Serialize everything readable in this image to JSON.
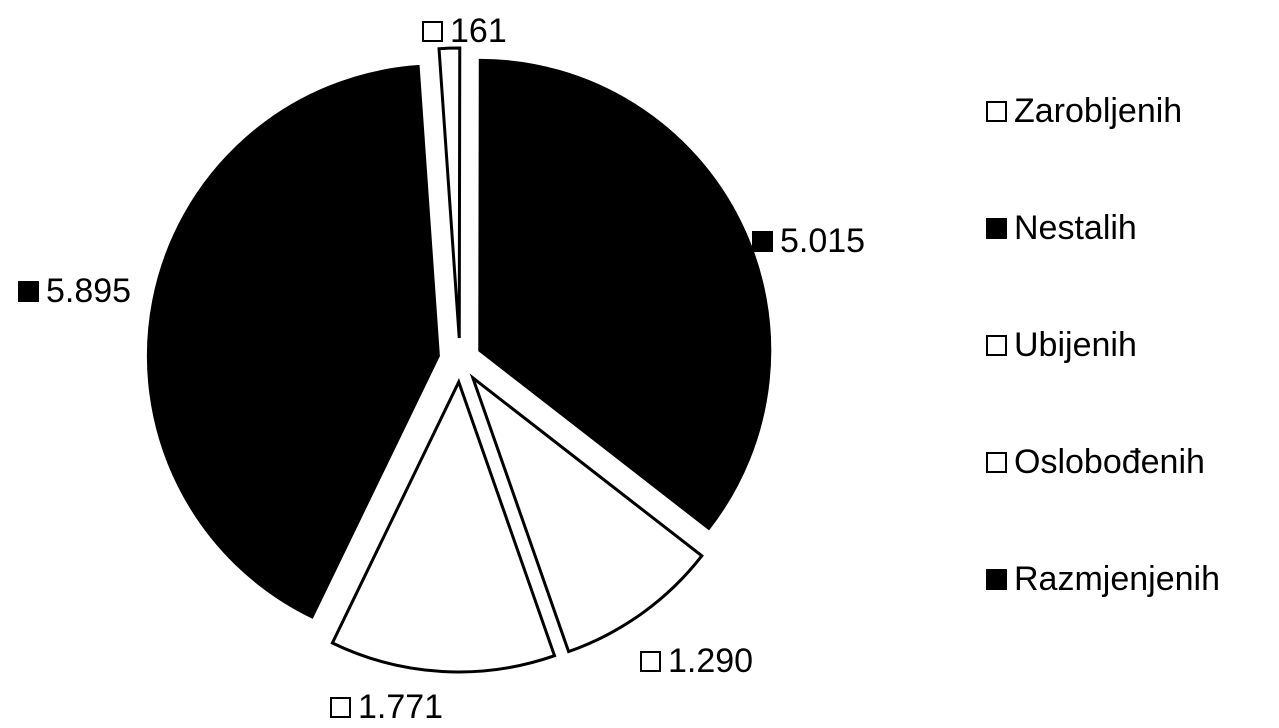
{
  "chart_data": {
    "type": "pie",
    "title": "",
    "slices": [
      {
        "name": "Zarobljenih",
        "value": 161,
        "label": "161",
        "color": "#ffffff"
      },
      {
        "name": "Nestalih",
        "value": 5015,
        "label": "5.015",
        "color": "#000000"
      },
      {
        "name": "Ubijenih",
        "value": 1290,
        "label": "1.290",
        "color": "#ffffff"
      },
      {
        "name": "Oslobođenih",
        "value": 1771,
        "label": "1.771",
        "color": "#ffffff"
      },
      {
        "name": "Razmjenjenih",
        "value": 5895,
        "label": "5.895",
        "color": "#000000"
      }
    ],
    "legend": {
      "position": "right",
      "entries": [
        "Zarobljenih",
        "Nestalih",
        "Ubijenih",
        "Oslobođenih",
        "Razmjenjenih"
      ]
    }
  }
}
